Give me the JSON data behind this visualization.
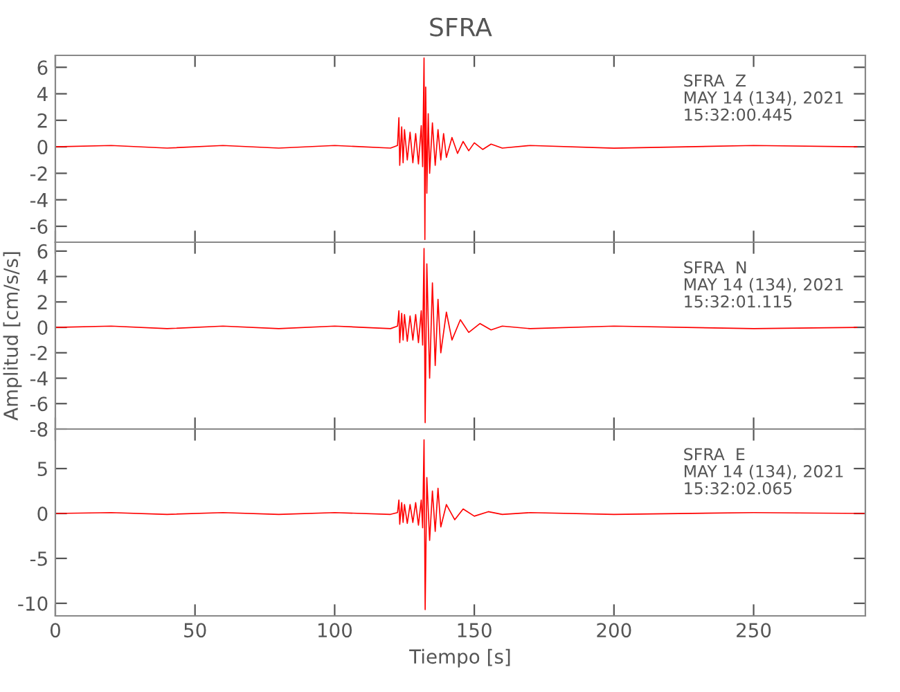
{
  "chart_data": [
    {
      "type": "line",
      "title": "SFRA",
      "tick_labels": "y",
      "xlim": [
        0,
        290
      ],
      "xticks": [
        0,
        50,
        100,
        150,
        200,
        250
      ],
      "ylim": [
        -7.2,
        6.9
      ],
      "yticks": [
        -6,
        -4,
        -2,
        0,
        2,
        4,
        6
      ],
      "annotations": [
        "SFRA  Z\nMAY 14 (134), 2021\n15:32:00.445"
      ],
      "series": [
        {
          "color": "#ff0000",
          "x": [
            0,
            20,
            40,
            60,
            80,
            100,
            120,
            122.5,
            123,
            123.3,
            124,
            124.5,
            125,
            126,
            127,
            128,
            129,
            130,
            131,
            131.5,
            132,
            132.3,
            132.6,
            133,
            133.5,
            134,
            135,
            136,
            137,
            138,
            139,
            140,
            142,
            144,
            146,
            148,
            150,
            153,
            156,
            160,
            170,
            200,
            250,
            287
          ],
          "values": [
            0,
            0.1,
            -0.1,
            0.1,
            -0.1,
            0.1,
            -0.1,
            0.1,
            2.2,
            -1.4,
            1.5,
            -1.2,
            1.3,
            -1.0,
            1.1,
            -1.2,
            1.0,
            -1.3,
            1.6,
            -1.5,
            6.7,
            -7.0,
            4.5,
            -3.5,
            2.5,
            -2.0,
            1.8,
            -1.4,
            1.3,
            -1.0,
            1.0,
            -0.8,
            0.7,
            -0.5,
            0.4,
            -0.3,
            0.3,
            -0.2,
            0.2,
            -0.1,
            0.1,
            -0.1,
            0.1,
            0
          ]
        }
      ]
    },
    {
      "type": "line",
      "ylabel": "Amplitud [cm/s/s]",
      "tick_labels": "y",
      "xlim": [
        0,
        290
      ],
      "xticks": [
        0,
        50,
        100,
        150,
        200,
        250
      ],
      "ylim": [
        -8,
        6.7
      ],
      "yticks": [
        -8,
        -6,
        -4,
        -2,
        0,
        2,
        4,
        6
      ],
      "annotations": [
        "SFRA  N\nMAY 14 (134), 2021\n15:32:01.115"
      ],
      "series": [
        {
          "color": "#ff0000",
          "x": [
            0,
            20,
            40,
            60,
            80,
            100,
            120,
            122.5,
            123,
            123.3,
            124,
            124.5,
            125,
            126,
            127,
            128,
            129,
            130,
            131,
            131.5,
            132,
            132.4,
            133,
            134,
            135,
            136,
            137,
            138,
            140,
            142,
            145,
            148,
            152,
            156,
            160,
            170,
            200,
            250,
            287
          ],
          "values": [
            0,
            0.1,
            -0.1,
            0.1,
            -0.1,
            0.1,
            -0.1,
            0.1,
            1.3,
            -1.2,
            1.1,
            -1.0,
            1.0,
            -1.1,
            0.9,
            -1.0,
            1.0,
            -1.2,
            1.3,
            -1.4,
            6.2,
            -7.5,
            5.0,
            -4.0,
            3.5,
            -3.0,
            2.2,
            -2.0,
            1.2,
            -1.0,
            0.6,
            -0.4,
            0.3,
            -0.2,
            0.1,
            -0.1,
            0.1,
            -0.1,
            0
          ]
        }
      ]
    },
    {
      "type": "line",
      "xlabel": "Tiempo [s]",
      "xlim": [
        0,
        290
      ],
      "xticks": [
        0,
        50,
        100,
        150,
        200,
        250
      ],
      "ylim": [
        -11.4,
        9.4
      ],
      "yticks": [
        -10,
        -5,
        0,
        5
      ],
      "annotations": [
        "SFRA  E\nMAY 14 (134), 2021\n15:32:02.065"
      ],
      "series": [
        {
          "color": "#ff0000",
          "x": [
            0,
            20,
            40,
            60,
            80,
            100,
            120,
            122.5,
            123,
            123.3,
            124,
            124.5,
            125,
            126,
            127,
            128,
            129,
            130,
            131,
            131.5,
            132,
            132.4,
            133,
            134,
            135,
            136,
            137,
            138,
            140,
            143,
            146,
            150,
            155,
            160,
            170,
            200,
            250,
            290
          ],
          "values": [
            0,
            0.1,
            -0.1,
            0.1,
            -0.1,
            0.1,
            -0.1,
            0.1,
            1.5,
            -1.2,
            1.2,
            -1.0,
            1.0,
            -1.1,
            1.0,
            -1.0,
            1.2,
            -1.3,
            1.5,
            -1.6,
            8.2,
            -10.7,
            4.0,
            -3.0,
            2.5,
            -2.0,
            2.8,
            -1.5,
            1.0,
            -0.7,
            0.5,
            -0.3,
            0.2,
            -0.1,
            0.1,
            -0.1,
            0.1,
            0
          ]
        }
      ]
    }
  ]
}
